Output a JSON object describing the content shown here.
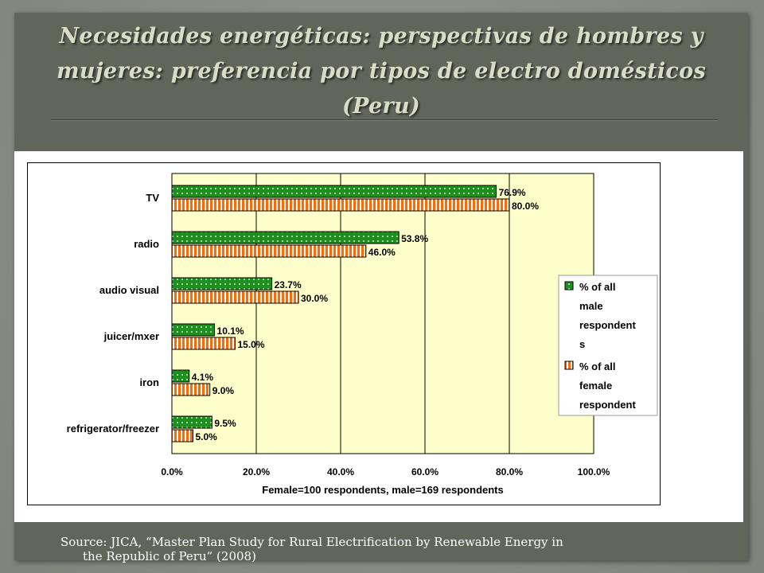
{
  "slide": {
    "title": "Necesidades energéticas: perspectivas de hombres y mujeres: preferencia por tipos de electro domésticos (Peru)",
    "source_line1": "Source: JICA, “Master Plan Study for Rural Electrification by Renewable Energy in",
    "source_line2": "the Republic of Peru” (2008)"
  },
  "colors": {
    "male": "#1e8f1e",
    "female": "#ff6a00",
    "plot_bg": "#ffffcc"
  },
  "chart_data": {
    "type": "bar",
    "orientation": "horizontal",
    "categories": [
      "TV",
      "radio",
      "audio visual",
      "juicer/mxer",
      "iron",
      "refrigerator/freezer"
    ],
    "series": [
      {
        "name": "% of all male respondents",
        "values": [
          76.9,
          53.8,
          23.7,
          10.1,
          4.1,
          9.5
        ],
        "labels": [
          "76.9%",
          "53.8%",
          "23.7%",
          "10.1%",
          "4.1%",
          "9.5%"
        ]
      },
      {
        "name": "% of all female respondents",
        "values": [
          80.0,
          46.0,
          30.0,
          15.0,
          9.0,
          5.0
        ],
        "labels": [
          "80.0%",
          "46.0%",
          "30.0%",
          "15.0%",
          "9.0%",
          "5.0%"
        ]
      }
    ],
    "legend_text": {
      "male": [
        "% of all",
        "male",
        "respondent",
        "s"
      ],
      "female": [
        "% of all",
        "female",
        "respondent"
      ]
    },
    "xlim": [
      0,
      100
    ],
    "xticks": [
      0,
      20,
      40,
      60,
      80,
      100
    ],
    "xtick_labels": [
      "0.0%",
      "20.0%",
      "40.0%",
      "60.0%",
      "80.0%",
      "100.0%"
    ],
    "xlabel": "Female=100 respondents, male=169 respondents",
    "grid": "vertical",
    "legend_position": "right"
  }
}
